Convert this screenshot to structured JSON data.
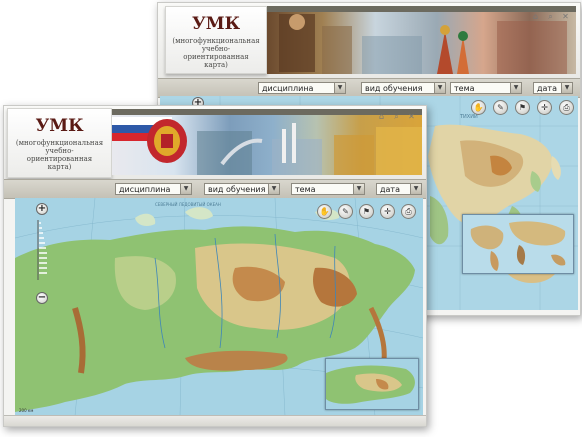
{
  "back_window": {
    "logo": {
      "title": "УМК",
      "subtitle": "(многофункциональная учебно-ориентированная карта)"
    },
    "filters": [
      {
        "label": "дисциплина"
      },
      {
        "label": "вид обучения"
      },
      {
        "label": "тема"
      },
      {
        "label": "дата"
      }
    ],
    "top_icons": [
      "home-icon",
      "search-icon",
      "close-icon"
    ],
    "tools": [
      "hand-icon",
      "draw-icon",
      "flag-icon",
      "compass-icon",
      "print-icon"
    ]
  },
  "front_window": {
    "logo": {
      "title": "УМК",
      "subtitle": "(многофункциональная учебно-ориентированная карта)"
    },
    "filters": [
      {
        "label": "дисциплина"
      },
      {
        "label": "вид обучения"
      },
      {
        "label": "тема"
      },
      {
        "label": "дата"
      }
    ],
    "top_icons": [
      "home-icon",
      "search-icon",
      "close-icon"
    ],
    "tools": [
      "hand-icon",
      "draw-icon",
      "flag-icon",
      "compass-icon",
      "print-icon"
    ],
    "map_scale_text": "200 км"
  },
  "colors": {
    "sea": "#9fd0e2",
    "lowland": "#8fc272",
    "upland": "#d9c68a",
    "mountain": "#c48a4c",
    "toolbar": "#c9c6bb"
  }
}
